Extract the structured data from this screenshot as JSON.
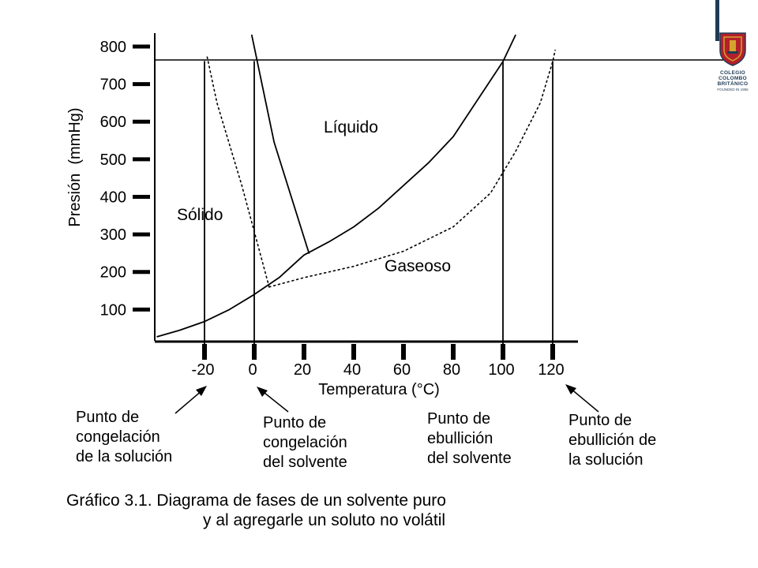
{
  "chart_data": {
    "type": "line",
    "title": "",
    "xlabel": "Temperatura (°C)",
    "ylabel": "Presión  (mmHg)",
    "x_ticks": [
      -20,
      0,
      20,
      40,
      60,
      80,
      100,
      120
    ],
    "y_ticks": [
      100,
      200,
      300,
      400,
      500,
      600,
      700,
      800
    ],
    "xlim": [
      -40,
      130
    ],
    "ylim": [
      0,
      820
    ],
    "grid": false,
    "reference_line": {
      "y": 760
    },
    "regions": {
      "solid": "Sólido",
      "liquid": "Líquido",
      "gas": "Gaseoso"
    },
    "series": [
      {
        "id": "pure-vapor-pressure",
        "style": "solid",
        "points": [
          [
            -39,
            28
          ],
          [
            -30,
            45
          ],
          [
            -20,
            68
          ],
          [
            -10,
            100
          ],
          [
            0,
            140
          ],
          [
            10,
            185
          ],
          [
            20,
            245
          ],
          [
            30,
            280
          ],
          [
            40,
            320
          ],
          [
            50,
            370
          ],
          [
            60,
            430
          ],
          [
            70,
            490
          ],
          [
            80,
            560
          ],
          [
            90,
            660
          ],
          [
            100,
            760
          ],
          [
            105,
            830
          ]
        ]
      },
      {
        "id": "pure-fusion-line",
        "style": "solid",
        "points": [
          [
            22,
            250
          ],
          [
            8,
            545
          ],
          [
            -1,
            830
          ]
        ]
      },
      {
        "id": "solution-vapor-pressure",
        "style": "dotted",
        "points": [
          [
            6,
            160
          ],
          [
            20,
            185
          ],
          [
            40,
            215
          ],
          [
            60,
            255
          ],
          [
            80,
            320
          ],
          [
            95,
            410
          ],
          [
            105,
            520
          ],
          [
            115,
            650
          ],
          [
            120,
            760
          ],
          [
            121,
            790
          ]
        ]
      },
      {
        "id": "solution-fusion-line",
        "style": "dotted",
        "points": [
          [
            6,
            160
          ],
          [
            -5,
            430
          ],
          [
            -15,
            650
          ],
          [
            -19,
            775
          ]
        ]
      },
      {
        "id": "freezing-point-solution",
        "style": "solid",
        "points": [
          [
            -20,
            0
          ],
          [
            -20,
            760
          ]
        ]
      },
      {
        "id": "freezing-point-solvent",
        "style": "solid",
        "points": [
          [
            0,
            0
          ],
          [
            0,
            760
          ]
        ]
      },
      {
        "id": "boiling-point-solvent",
        "style": "solid",
        "points": [
          [
            100,
            0
          ],
          [
            100,
            760
          ]
        ]
      },
      {
        "id": "boiling-point-solution",
        "style": "solid",
        "points": [
          [
            120,
            0
          ],
          [
            120,
            760
          ]
        ]
      }
    ],
    "annotations": [
      {
        "lines": [
          "Punto de",
          "congelación",
          "de la solución"
        ],
        "x": -20
      },
      {
        "lines": [
          "Punto de",
          "congelación",
          "del solvente"
        ],
        "x": 0
      },
      {
        "lines": [
          "Punto de",
          "ebullición",
          "del solvente"
        ],
        "x": 100
      },
      {
        "lines": [
          "Punto de",
          "ebullición de",
          "la solución"
        ],
        "x": 120
      }
    ]
  },
  "caption": {
    "line1": "Gráfico 3.1. Diagrama de fases de un solvente puro",
    "line2": "y al agregarle un soluto no volátil"
  },
  "logo": {
    "line1": "COLEGIO",
    "line2": "COLOMBO",
    "line3": "BRITÁNICO",
    "founded": "FOUNDED IN 1956"
  },
  "colors": {
    "ink": "#000000",
    "logo_navy": "#1f3b57",
    "logo_red": "#b3202a",
    "logo_gold": "#d4a32c"
  }
}
